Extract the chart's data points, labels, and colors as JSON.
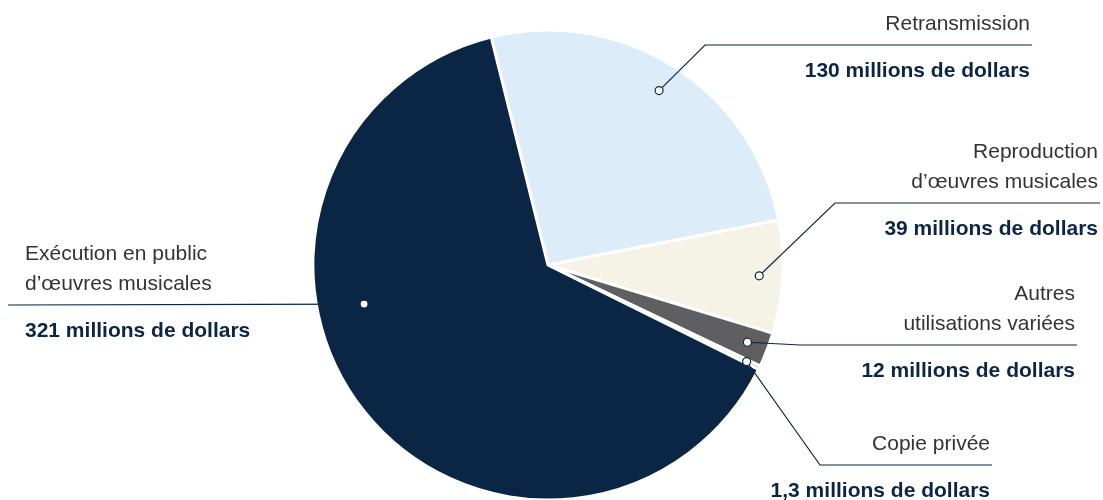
{
  "chart_data": {
    "type": "pie",
    "categories": [
      "Retransmission",
      "Reproduction\nd’œuvres musicales",
      "Autres\nutilisations variées",
      "Copie privée",
      "Exécution en public\nd’œuvres musicales"
    ],
    "values": [
      130,
      39,
      12,
      1.3,
      321
    ],
    "colors": [
      "#dcecf9",
      "#f5f2e6",
      "#5f5f62",
      "#b4b4b8",
      "#0b2545"
    ],
    "value_labels": [
      "130 millions de dollars",
      "39 millions de dollars",
      "12 millions de dollars",
      "1,3 millions de dollars",
      "321 millions de dollars"
    ]
  }
}
